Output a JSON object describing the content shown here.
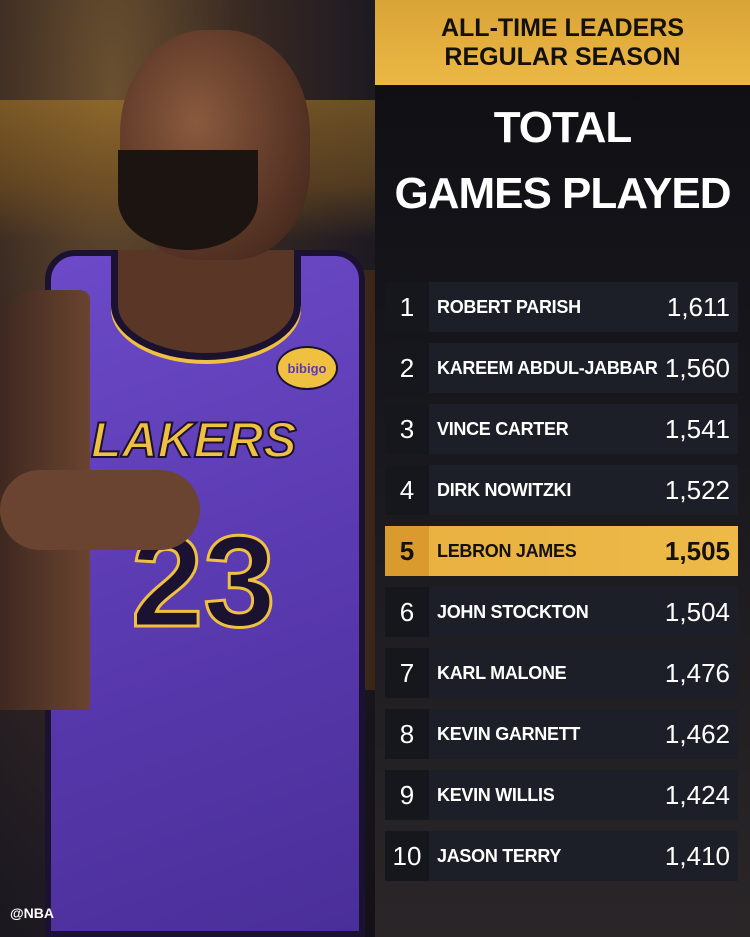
{
  "header": {
    "line1": "ALL-TIME LEADERS",
    "line2": "REGULAR SEASON"
  },
  "title": {
    "line1": "TOTAL",
    "line2": "GAMES PLAYED"
  },
  "leaders": [
    {
      "rank": "1",
      "name": "ROBERT PARISH",
      "games": "1,611"
    },
    {
      "rank": "2",
      "name": "KAREEM ABDUL-JABBAR",
      "games": "1,560"
    },
    {
      "rank": "3",
      "name": "VINCE CARTER",
      "games": "1,541"
    },
    {
      "rank": "4",
      "name": "DIRK NOWITZKI",
      "games": "1,522"
    },
    {
      "rank": "5",
      "name": "LEBRON JAMES",
      "games": "1,505",
      "highlighted": true
    },
    {
      "rank": "6",
      "name": "JOHN STOCKTON",
      "games": "1,504"
    },
    {
      "rank": "7",
      "name": "KARL MALONE",
      "games": "1,476"
    },
    {
      "rank": "8",
      "name": "KEVIN GARNETT",
      "games": "1,462"
    },
    {
      "rank": "9",
      "name": "KEVIN WILLIS",
      "games": "1,424"
    },
    {
      "rank": "10",
      "name": "JASON TERRY",
      "games": "1,410"
    }
  ],
  "photo": {
    "jersey_text": "LAKERS",
    "jersey_number": "23",
    "sponsor": "bibigo"
  },
  "watermark": "@NBA",
  "colors": {
    "gold": "#ecb845",
    "panel": "#1c1f27",
    "jersey": "#5a3ab0"
  }
}
